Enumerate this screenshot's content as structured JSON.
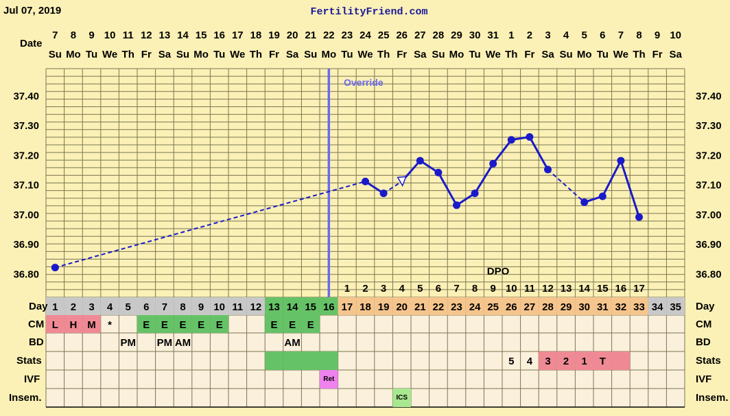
{
  "header": {
    "date": "Jul 07, 2019",
    "site": "FertilityFriend.com"
  },
  "labels": {
    "date": "Date",
    "override": "Override",
    "dpo": "DPO",
    "day": "Day",
    "cm": "CM",
    "bd": "BD",
    "stats": "Stats",
    "ivf": "IVF",
    "insem": "Insem."
  },
  "colors": {
    "background": "#fbf0b6",
    "plot_bg": "#fbf0b6",
    "grid": "#7a7650",
    "line": "#1a1aca",
    "override_line": "#6a6af0",
    "day_gray": "#c8c8c8",
    "day_green": "#66c266",
    "day_orange": "#f6c58e",
    "cell_bg": "#fbf0dc",
    "pink": "#ef8a95",
    "green": "#66c266",
    "magenta": "#ee82ee",
    "light_green": "#a8e890"
  },
  "chart_data": {
    "type": "line",
    "title": "",
    "xlabel": "Day",
    "ylabel": "",
    "ylim": [
      36.72,
      37.49
    ],
    "y_ticks": [
      "37.40",
      "37.30",
      "37.20",
      "37.10",
      "37.00",
      "36.90",
      "36.80"
    ],
    "dates": [
      "7",
      "8",
      "9",
      "10",
      "11",
      "12",
      "13",
      "14",
      "15",
      "16",
      "17",
      "18",
      "19",
      "20",
      "21",
      "22",
      "23",
      "24",
      "25",
      "26",
      "27",
      "28",
      "29",
      "30",
      "31",
      "1",
      "2",
      "3",
      "4",
      "5",
      "6",
      "7",
      "8",
      "9",
      "10"
    ],
    "weekdays": [
      "Su",
      "Mo",
      "Tu",
      "We",
      "Th",
      "Fr",
      "Sa",
      "Su",
      "Mo",
      "Tu",
      "We",
      "Th",
      "Fr",
      "Sa",
      "Su",
      "Mo",
      "Tu",
      "We",
      "Th",
      "Fr",
      "Sa",
      "Su",
      "Mo",
      "Tu",
      "We",
      "Th",
      "Fr",
      "Sa",
      "Su",
      "Mo",
      "Tu",
      "We",
      "Th",
      "Fr",
      "Sa"
    ],
    "cycle_days": [
      "1",
      "2",
      "3",
      "4",
      "5",
      "6",
      "7",
      "8",
      "9",
      "10",
      "11",
      "12",
      "13",
      "14",
      "15",
      "16",
      "17",
      "18",
      "19",
      "20",
      "21",
      "22",
      "23",
      "24",
      "25",
      "26",
      "27",
      "28",
      "29",
      "30",
      "31",
      "32",
      "33",
      "34",
      "35"
    ],
    "day_colors": [
      "gray",
      "gray",
      "gray",
      "gray",
      "gray",
      "gray",
      "gray",
      "gray",
      "gray",
      "gray",
      "gray",
      "gray",
      "green",
      "green",
      "green",
      "green",
      "orange",
      "orange",
      "orange",
      "orange",
      "orange",
      "orange",
      "orange",
      "orange",
      "orange",
      "orange",
      "orange",
      "orange",
      "orange",
      "orange",
      "orange",
      "orange",
      "orange",
      "gray",
      "gray"
    ],
    "dpo": [
      "",
      "",
      "",
      "",
      "",
      "",
      "",
      "",
      "",
      "",
      "",
      "",
      "",
      "",
      "",
      "",
      "1",
      "2",
      "3",
      "4",
      "5",
      "6",
      "7",
      "8",
      "9",
      "10",
      "11",
      "12",
      "13",
      "14",
      "15",
      "16",
      "17",
      "",
      ""
    ],
    "temps": [
      {
        "day": 1,
        "temp": 36.82,
        "marker": "dot"
      },
      {
        "day": 18,
        "temp": 37.11,
        "marker": "dot"
      },
      {
        "day": 19,
        "temp": 37.07,
        "marker": "dot"
      },
      {
        "day": 20,
        "temp": 37.11,
        "marker": "open-triangle"
      },
      {
        "day": 21,
        "temp": 37.18,
        "marker": "dot"
      },
      {
        "day": 22,
        "temp": 37.14,
        "marker": "dot"
      },
      {
        "day": 23,
        "temp": 37.03,
        "marker": "dot"
      },
      {
        "day": 24,
        "temp": 37.07,
        "marker": "dot"
      },
      {
        "day": 25,
        "temp": 37.17,
        "marker": "dot"
      },
      {
        "day": 26,
        "temp": 37.25,
        "marker": "dot"
      },
      {
        "day": 27,
        "temp": 37.26,
        "marker": "dot"
      },
      {
        "day": 28,
        "temp": 37.15,
        "marker": "dot"
      },
      {
        "day": 30,
        "temp": 37.04,
        "marker": "dot"
      },
      {
        "day": 31,
        "temp": 37.06,
        "marker": "dot"
      },
      {
        "day": 32,
        "temp": 37.18,
        "marker": "dot"
      },
      {
        "day": 33,
        "temp": 36.99,
        "marker": "dot"
      }
    ],
    "segments": [
      {
        "from": 1,
        "to": 18,
        "style": "dashed"
      },
      {
        "from": 18,
        "to": 19,
        "style": "solid"
      },
      {
        "from": 19,
        "to": 20,
        "style": "dashed"
      },
      {
        "from": 20,
        "to": 21,
        "style": "solid"
      },
      {
        "from": 21,
        "to": 22,
        "style": "solid"
      },
      {
        "from": 22,
        "to": 23,
        "style": "solid"
      },
      {
        "from": 23,
        "to": 24,
        "style": "solid"
      },
      {
        "from": 24,
        "to": 25,
        "style": "solid"
      },
      {
        "from": 25,
        "to": 26,
        "style": "solid"
      },
      {
        "from": 26,
        "to": 27,
        "style": "solid"
      },
      {
        "from": 27,
        "to": 28,
        "style": "solid"
      },
      {
        "from": 28,
        "to": 30,
        "style": "dashed"
      },
      {
        "from": 30,
        "to": 31,
        "style": "solid"
      },
      {
        "from": 31,
        "to": 32,
        "style": "solid"
      },
      {
        "from": 32,
        "to": 33,
        "style": "solid"
      }
    ],
    "override_day": 16,
    "cm": [
      {
        "day": 1,
        "text": "L",
        "color": "pink"
      },
      {
        "day": 2,
        "text": "H",
        "color": "pink"
      },
      {
        "day": 3,
        "text": "M",
        "color": "pink"
      },
      {
        "day": 4,
        "text": "*",
        "color": ""
      },
      {
        "day": 6,
        "text": "E",
        "color": "green"
      },
      {
        "day": 7,
        "text": "E",
        "color": "green"
      },
      {
        "day": 8,
        "text": "E",
        "color": "green"
      },
      {
        "day": 9,
        "text": "E",
        "color": "green"
      },
      {
        "day": 10,
        "text": "E",
        "color": "green"
      },
      {
        "day": 13,
        "text": "E",
        "color": "green"
      },
      {
        "day": 14,
        "text": "E",
        "color": "green"
      },
      {
        "day": 15,
        "text": "E",
        "color": "green"
      }
    ],
    "bd": [
      {
        "day": 5,
        "text": "PM"
      },
      {
        "day": 7,
        "text": "PM"
      },
      {
        "day": 8,
        "text": "AM"
      },
      {
        "day": 14,
        "text": "AM"
      }
    ],
    "stats": [
      {
        "day": 13,
        "text": "",
        "color": "green"
      },
      {
        "day": 14,
        "text": "",
        "color": "green"
      },
      {
        "day": 15,
        "text": "",
        "color": "green"
      },
      {
        "day": 16,
        "text": "",
        "color": "green"
      },
      {
        "day": 26,
        "text": "5",
        "color": ""
      },
      {
        "day": 27,
        "text": "4",
        "color": ""
      },
      {
        "day": 28,
        "text": "3",
        "color": "pink"
      },
      {
        "day": 29,
        "text": "2",
        "color": "pink"
      },
      {
        "day": 30,
        "text": "1",
        "color": "pink"
      },
      {
        "day": 31,
        "text": "T",
        "color": "pink"
      },
      {
        "day": 32,
        "text": "",
        "color": "pink"
      }
    ],
    "ivf": [
      {
        "day": 16,
        "text": "Ret",
        "color": "magenta"
      }
    ],
    "insem": [
      {
        "day": 20,
        "text": "ICS",
        "color": "light_green"
      }
    ]
  }
}
